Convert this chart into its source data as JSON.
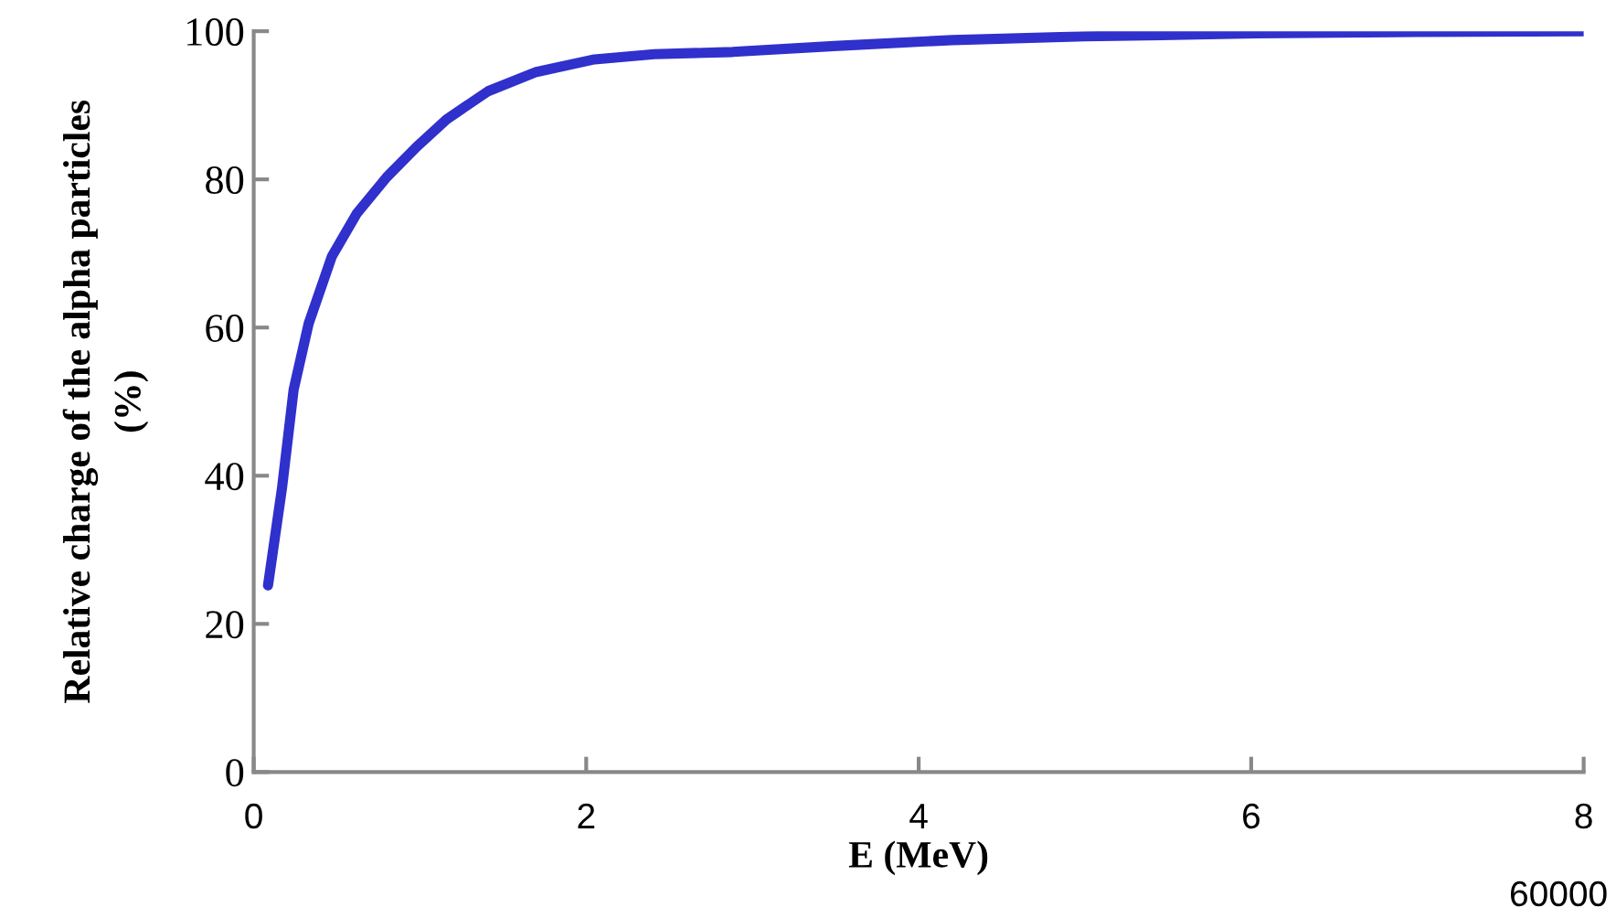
{
  "chart_data": {
    "type": "line",
    "xlabel": "E (MeV)",
    "ylabel": "Relative charge of the alpha particles\n(%)",
    "x": [
      0.086,
      0.17,
      0.24,
      0.33,
      0.47,
      0.62,
      0.8,
      0.98,
      1.16,
      1.41,
      1.7,
      2.05,
      2.41,
      2.88,
      3.49,
      4.2,
      5.0,
      6.03,
      7.0,
      8.0
    ],
    "series": [
      {
        "color": "#3030cc",
        "values": [
          25.2,
          38.3,
          51.6,
          60.5,
          69.6,
          75.4,
          80.3,
          84.4,
          88.1,
          91.9,
          94.5,
          96.2,
          96.9,
          97.2,
          98.0,
          98.8,
          99.3,
          99.7,
          99.9,
          100
        ]
      }
    ],
    "xlim": [
      0,
      8
    ],
    "ylim": [
      0,
      100
    ],
    "xticks": [
      0,
      2,
      4,
      6,
      8
    ],
    "yticks": [
      0,
      20,
      40,
      60,
      80,
      100
    ],
    "grid": false,
    "legend": false,
    "marker": "none",
    "line_style": "solid",
    "annotations": [
      "60000"
    ]
  }
}
